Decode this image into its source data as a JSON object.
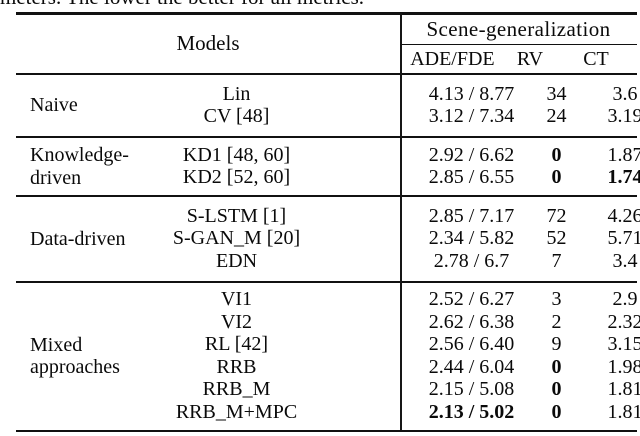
{
  "caption": "meters. The lower the better for all metrics.",
  "colors": {
    "text": "#0a0a0a",
    "rule": "#111111",
    "background": "#ffffff"
  },
  "table": {
    "header": {
      "models": "Models",
      "scene_generalization": "Scene-generalization",
      "metrics": [
        "ADE/FDE",
        "RV",
        "CT"
      ]
    },
    "groups": [
      {
        "label": "Naive",
        "label_lines": [
          "Naive"
        ],
        "rows": [
          {
            "model": "Lin",
            "ade_fde": "4.13 / 8.77",
            "rv": "34",
            "ct": "3.6"
          },
          {
            "model": "CV [48]",
            "ade_fde": "3.12 / 7.34",
            "rv": "24",
            "ct": "3.19"
          }
        ]
      },
      {
        "label": "Knowledge-driven",
        "label_lines": [
          "Knowledge-",
          "driven"
        ],
        "rows": [
          {
            "model": "KD1 [48, 60]",
            "ade_fde": "2.92 / 6.62",
            "rv": "0",
            "rv_bold": true,
            "ct": "1.87"
          },
          {
            "model": "KD2 [52, 60]",
            "ade_fde": "2.85 / 6.55",
            "rv": "0",
            "rv_bold": true,
            "ct": "1.74",
            "ct_bold": true
          }
        ]
      },
      {
        "label": "Data-driven",
        "label_lines": [
          "Data-driven"
        ],
        "rows": [
          {
            "model": "S-LSTM [1]",
            "ade_fde": "2.85 / 7.17",
            "rv": "72",
            "ct": "4.26"
          },
          {
            "model": "S-GAN_M [20]",
            "ade_fde": "2.34 / 5.82",
            "rv": "52",
            "ct": "5.71"
          },
          {
            "model": "EDN",
            "ade_fde": "2.78 / 6.7",
            "rv": "7",
            "ct": "3.4"
          }
        ]
      },
      {
        "label": "Mixed approaches",
        "label_lines": [
          "Mixed",
          "approaches"
        ],
        "rows": [
          {
            "model": "VI1",
            "ade_fde": "2.52 / 6.27",
            "rv": "3",
            "ct": "2.9"
          },
          {
            "model": "VI2",
            "ade_fde": "2.62 / 6.38",
            "rv": "2",
            "ct": "2.32"
          },
          {
            "model": "RL [42]",
            "ade_fde": "2.56 / 6.40",
            "rv": "9",
            "ct": "3.15"
          },
          {
            "model": "RRB",
            "ade_fde": "2.44 / 6.04",
            "rv": "0",
            "rv_bold": true,
            "ct": "1.98"
          },
          {
            "model": "RRB_M",
            "ade_fde": "2.15 / 5.08",
            "rv": "0",
            "rv_bold": true,
            "ct": "1.81"
          },
          {
            "model": "RRB_M+MPC",
            "ade_fde": "2.13 / 5.02",
            "ade_fde_bold": true,
            "rv": "0",
            "rv_bold": true,
            "ct": "1.81"
          }
        ]
      }
    ]
  }
}
